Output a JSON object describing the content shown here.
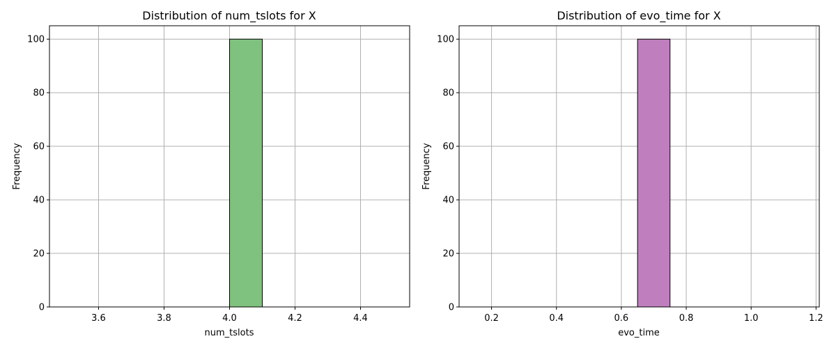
{
  "chart_data": [
    {
      "type": "bar",
      "title": "Distribution of num_tslots for X",
      "xlabel": "num_tslots",
      "ylabel": "Frequency",
      "xlim": [
        3.45,
        4.55
      ],
      "ylim": [
        0,
        105
      ],
      "xticks": [
        3.6,
        3.8,
        4.0,
        4.2,
        4.4
      ],
      "xtick_labels": [
        "3.6",
        "3.8",
        "4.0",
        "4.2",
        "4.4"
      ],
      "yticks": [
        0,
        20,
        40,
        60,
        80,
        100
      ],
      "ytick_labels": [
        "0",
        "20",
        "40",
        "60",
        "80",
        "100"
      ],
      "bin_edges": [
        3.5,
        3.6,
        3.7,
        3.8,
        3.9,
        4.0,
        4.1,
        4.2,
        4.3,
        4.4,
        4.5
      ],
      "values": [
        0,
        0,
        0,
        0,
        0,
        100,
        0,
        0,
        0,
        0
      ],
      "color": "#7fc27f",
      "edge_color": "#000000",
      "grid": true
    },
    {
      "type": "bar",
      "title": "Distribution of evo_time for X",
      "xlabel": "evo_time",
      "ylabel": "Frequency",
      "xlim": [
        0.1,
        1.21
      ],
      "ylim": [
        0,
        105
      ],
      "xticks": [
        0.2,
        0.4,
        0.6,
        0.8,
        1.0,
        1.2
      ],
      "xtick_labels": [
        "0.2",
        "0.4",
        "0.6",
        "0.8",
        "1.0",
        "1.2"
      ],
      "yticks": [
        0,
        20,
        40,
        60,
        80,
        100
      ],
      "ytick_labels": [
        "0",
        "20",
        "40",
        "60",
        "80",
        "100"
      ],
      "bin_edges": [
        0.15,
        0.25,
        0.35,
        0.45,
        0.55,
        0.65,
        0.75,
        0.85,
        0.95,
        1.05,
        1.15
      ],
      "values": [
        0,
        0,
        0,
        0,
        0,
        100,
        0,
        0,
        0,
        0
      ],
      "color": "#bf7fbf",
      "edge_color": "#000000",
      "grid": true
    }
  ]
}
